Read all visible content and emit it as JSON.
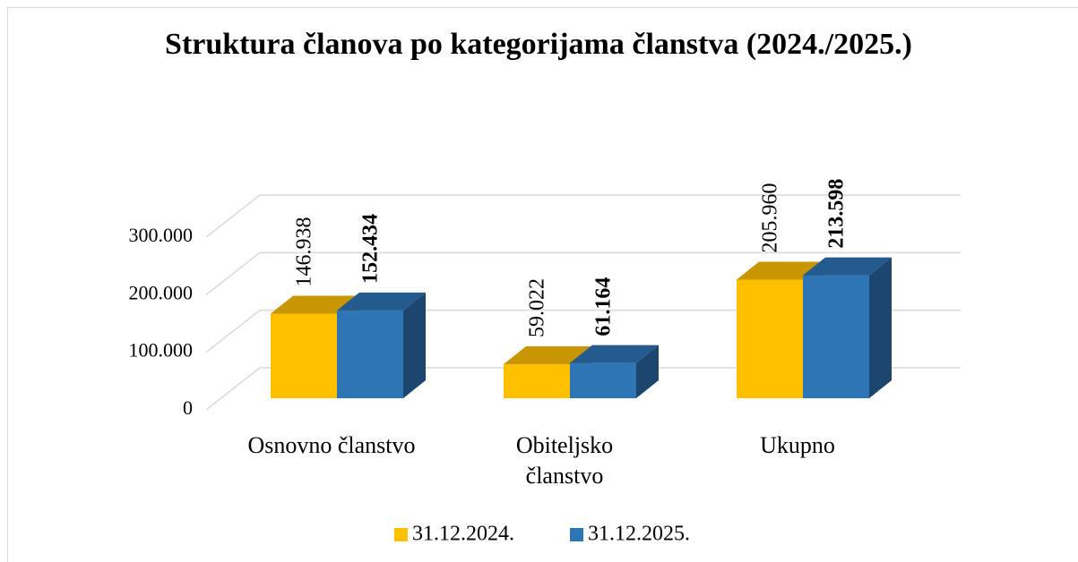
{
  "chart_data": {
    "type": "bar3d",
    "title": "Struktura članova po kategorijama članstva (2024./2025.)",
    "categories": [
      "Osnovno članstvo",
      "Obiteljsko članstvo",
      "Ukupno"
    ],
    "series": [
      {
        "name": "31.12.2024.",
        "color": "#FFC000",
        "values": [
          146938,
          59022,
          205960
        ],
        "value_labels": [
          "146.938",
          "59.022",
          "205.960"
        ]
      },
      {
        "name": "31.12.2025.",
        "color": "#2E75B6",
        "values": [
          152434,
          61164,
          213598
        ],
        "value_labels": [
          "152.434",
          "61.164",
          "213.598"
        ]
      }
    ],
    "ylim": [
      0,
      300000
    ],
    "yticks": [
      {
        "value": 0,
        "label": "0"
      },
      {
        "value": 100000,
        "label": "100.000"
      },
      {
        "value": 200000,
        "label": "200.000"
      },
      {
        "value": 300000,
        "label": "300.000"
      }
    ],
    "grid": true,
    "legend": "bottom"
  }
}
